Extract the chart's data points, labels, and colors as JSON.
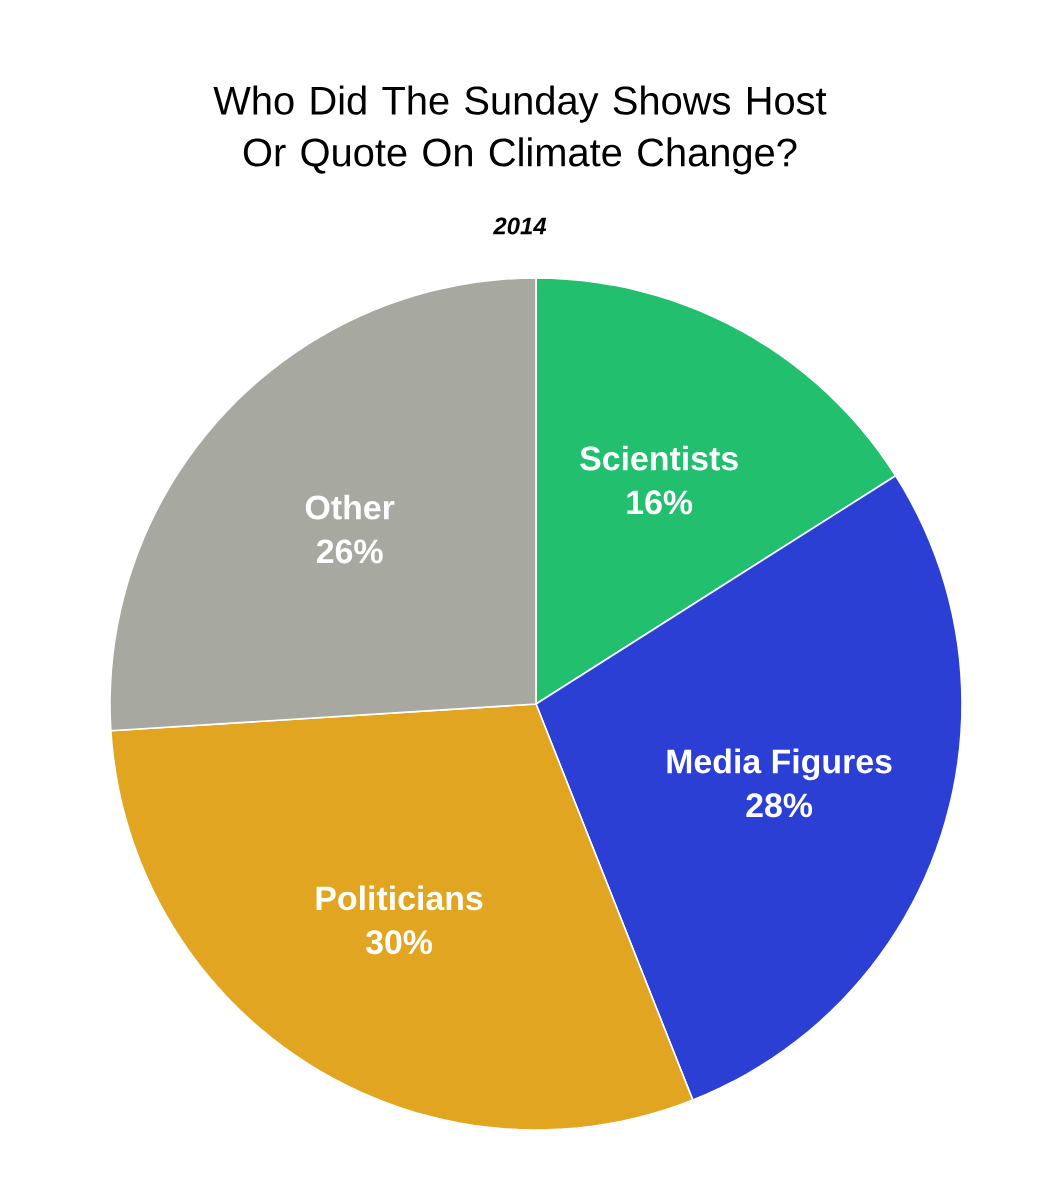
{
  "chart_data": {
    "type": "pie",
    "title": "Who Did The Sunday Shows Host Or Quote On Climate Change?",
    "subtitle": "2014",
    "categories": [
      "Scientists",
      "Media Figures",
      "Politicians",
      "Other"
    ],
    "values": [
      16,
      28,
      30,
      26
    ],
    "value_labels": [
      "16%",
      "28%",
      "30%",
      "26%"
    ],
    "colors": [
      "#22c06e",
      "#2b3fd4",
      "#e2a521",
      "#a7a9a1"
    ]
  }
}
